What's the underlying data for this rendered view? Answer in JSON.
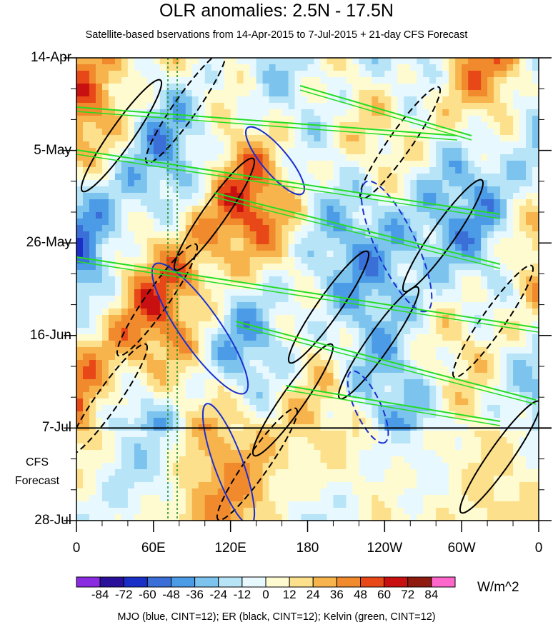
{
  "chart_data": {
    "type": "heatmap",
    "title": "OLR anomalies: 2.5N - 17.5N",
    "subtitle": "Satellite-based bservations from 14-Apr-2015 to 7-Jul-2015 + 21-day CFS Forecast",
    "x_ticks": [
      "0",
      "60E",
      "120E",
      "180",
      "120W",
      "60W",
      "0"
    ],
    "x_range_deg": [
      0,
      360
    ],
    "y_ticks": [
      "14-Apr",
      "5-May",
      "26-May",
      "16-Jun",
      "7-Jul",
      "28-Jul"
    ],
    "forecast_start": "7-Jul",
    "forecast_label": [
      "CFS",
      "Forecast"
    ],
    "colorbar": {
      "labels": [
        "-84",
        "-72",
        "-60",
        "-48",
        "-36",
        "-24",
        "-12",
        "0",
        "12",
        "24",
        "36",
        "48",
        "60",
        "72",
        "84"
      ],
      "colors": [
        "#8a2be2",
        "#2a0f9a",
        "#1a2fc8",
        "#3a6fd8",
        "#4c9be6",
        "#7cc4ee",
        "#b8e4f8",
        "#e8f8ff",
        "#fffbd0",
        "#fde08c",
        "#f8b44c",
        "#f08a2c",
        "#e84818",
        "#c81010",
        "#8e1a10",
        "#ff66cc"
      ],
      "units": "W/m^2"
    },
    "contour_legend": "MJO (blue, CINT=12); ER (black, CINT=12); Kelvin (green, CINT=12)",
    "overlay_colors": {
      "mjo": "#1a2fd0",
      "er": "#000000",
      "kelvin": "#22dd22"
    }
  }
}
